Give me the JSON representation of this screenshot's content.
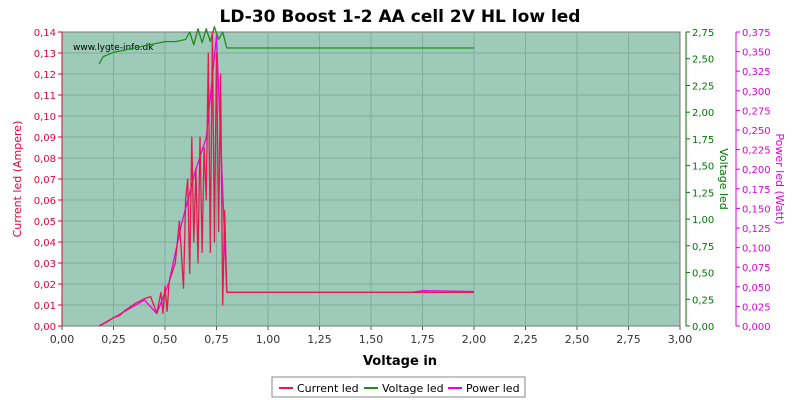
{
  "chart_data": {
    "type": "line",
    "title": "LD-30 Boost 1-2 AA cell 2V HL low led",
    "watermark": "www.lygte-info.dk",
    "xlabel": "Voltage in",
    "xlim": [
      0,
      3
    ],
    "xticks": [
      "0,00",
      "0,25",
      "0,50",
      "0,75",
      "1,00",
      "1,25",
      "1,50",
      "1,75",
      "2,00",
      "2,25",
      "2,50",
      "2,75",
      "3,00"
    ],
    "y_left": {
      "label": "Current led (Ampere)",
      "lim": [
        0,
        0.14
      ],
      "ticks": [
        "0,00",
        "0,01",
        "0,02",
        "0,03",
        "0,04",
        "0,05",
        "0,06",
        "0,07",
        "0,08",
        "0,09",
        "0,10",
        "0,11",
        "0,12",
        "0,13",
        "0,14"
      ],
      "color": "#e8003a"
    },
    "y_right1": {
      "label": "Voltage led",
      "lim": [
        0,
        2.75
      ],
      "ticks": [
        "0,00",
        "0,25",
        "0,50",
        "0,75",
        "1,00",
        "1,25",
        "1,50",
        "1,75",
        "2,00",
        "2,25",
        "2,50",
        "2,75"
      ],
      "color": "#007700"
    },
    "y_right2": {
      "label": "Power led (Watt)",
      "lim": [
        0,
        0.375
      ],
      "ticks": [
        "0,000",
        "0,025",
        "0,050",
        "0,075",
        "0,100",
        "0,125",
        "0,150",
        "0,175",
        "0,200",
        "0,225",
        "0,250",
        "0,275",
        "0,300",
        "0,325",
        "0,350",
        "0,375"
      ],
      "color": "#dd00dd"
    },
    "grid": true,
    "legend_position": "bottom",
    "series": [
      {
        "name": "Current led",
        "axis": "left",
        "color": "#e8184f",
        "x": [
          0.18,
          0.22,
          0.25,
          0.28,
          0.3,
          0.33,
          0.36,
          0.4,
          0.43,
          0.46,
          0.48,
          0.49,
          0.5,
          0.51,
          0.52,
          0.53,
          0.55,
          0.57,
          0.59,
          0.6,
          0.61,
          0.62,
          0.63,
          0.64,
          0.65,
          0.66,
          0.67,
          0.68,
          0.69,
          0.7,
          0.71,
          0.72,
          0.73,
          0.74,
          0.75,
          0.76,
          0.77,
          0.78,
          0.79,
          0.8,
          2.0
        ],
        "y": [
          0.0,
          0.002,
          0.004,
          0.005,
          0.007,
          0.009,
          0.011,
          0.013,
          0.014,
          0.006,
          0.016,
          0.006,
          0.019,
          0.007,
          0.021,
          0.024,
          0.03,
          0.05,
          0.018,
          0.06,
          0.07,
          0.025,
          0.09,
          0.04,
          0.075,
          0.03,
          0.09,
          0.035,
          0.085,
          0.06,
          0.13,
          0.035,
          0.14,
          0.04,
          0.13,
          0.045,
          0.12,
          0.01,
          0.055,
          0.016,
          0.016
        ]
      },
      {
        "name": "Voltage led",
        "axis": "right1",
        "color": "#1e8c1e",
        "x": [
          0.18,
          0.2,
          0.25,
          0.3,
          0.35,
          0.4,
          0.45,
          0.5,
          0.55,
          0.6,
          0.62,
          0.64,
          0.66,
          0.68,
          0.7,
          0.72,
          0.74,
          0.76,
          0.78,
          0.8,
          2.0
        ],
        "y": [
          2.45,
          2.52,
          2.56,
          2.58,
          2.6,
          2.62,
          2.64,
          2.66,
          2.66,
          2.68,
          2.75,
          2.63,
          2.78,
          2.65,
          2.78,
          2.66,
          2.8,
          2.68,
          2.75,
          2.6,
          2.6
        ]
      },
      {
        "name": "Power led",
        "axis": "right2",
        "color": "#ee00ee",
        "x": [
          0.18,
          0.4,
          0.46,
          0.52,
          0.58,
          0.65,
          0.7,
          0.75,
          0.8,
          1.0,
          1.5,
          1.7,
          1.75,
          2.0
        ],
        "y": [
          0.0,
          0.033,
          0.016,
          0.056,
          0.13,
          0.2,
          0.24,
          0.37,
          0.043,
          0.043,
          0.043,
          0.043,
          0.045,
          0.044
        ]
      }
    ]
  }
}
